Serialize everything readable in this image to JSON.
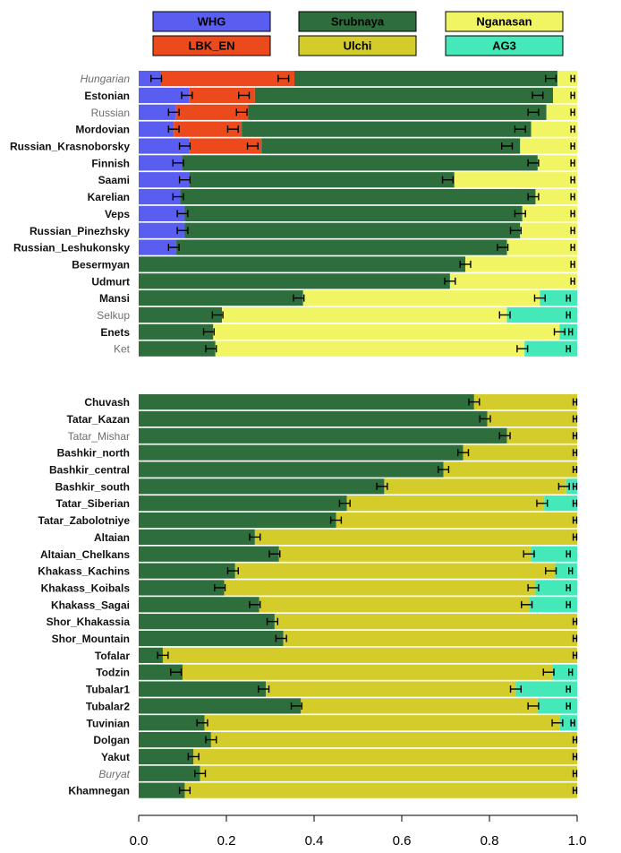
{
  "chart_data": {
    "type": "bar",
    "orientation": "horizontal",
    "stacked": true,
    "xlim": [
      0,
      1
    ],
    "x_ticks": [
      0.0,
      0.2,
      0.4,
      0.6,
      0.8,
      1.0
    ],
    "x_tick_labels": [
      "0.0",
      "0.2",
      "0.4",
      "0.6",
      "0.8",
      "1.0"
    ],
    "legend_position": "top",
    "components": [
      {
        "name": "WHG",
        "color": "#5a5ef0"
      },
      {
        "name": "LBK_EN",
        "color": "#ec4a1c"
      },
      {
        "name": "Srubnaya",
        "color": "#2d6e3c"
      },
      {
        "name": "Ulchi",
        "color": "#d4cc2a"
      },
      {
        "name": "Nganasan",
        "color": "#f1f564"
      },
      {
        "name": "AG3",
        "color": "#45e8b8"
      }
    ],
    "label_colors": {
      "normal": "#111111",
      "grey": "#6e6e6e"
    },
    "panels": [
      {
        "rows": [
          {
            "label": "Hungarian",
            "style": "grey-italic",
            "segments": [
              0.05,
              0.305,
              0.6,
              0,
              0.045,
              0
            ],
            "errorbars": [
              0.04,
              0.33,
              0.94,
              0.99
            ]
          },
          {
            "label": "Estonian",
            "style": "bold",
            "segments": [
              0.115,
              0.15,
              0.68,
              0,
              0.055,
              0
            ],
            "errorbars": [
              0.11,
              0.24,
              0.91,
              0.99
            ]
          },
          {
            "label": "Russian",
            "style": "grey",
            "segments": [
              0.085,
              0.165,
              0.68,
              0,
              0.07,
              0
            ],
            "errorbars": [
              0.08,
              0.235,
              0.9,
              0.99
            ]
          },
          {
            "label": "Mordovian",
            "style": "bold",
            "segments": [
              0.08,
              0.155,
              0.66,
              0,
              0.105,
              0
            ],
            "errorbars": [
              0.08,
              0.215,
              0.87,
              0.99
            ]
          },
          {
            "label": "Russian_Krasnoborsky",
            "style": "bold",
            "segments": [
              0.115,
              0.165,
              0.59,
              0,
              0.13,
              0
            ],
            "errorbars": [
              0.105,
              0.26,
              0.84,
              0.99
            ]
          },
          {
            "label": "Finnish",
            "style": "bold",
            "segments": [
              0.1,
              0,
              0.81,
              0,
              0.09,
              0
            ],
            "errorbars": [
              0.09,
              0.9,
              0.99
            ]
          },
          {
            "label": "Saami",
            "style": "bold",
            "segments": [
              0.115,
              0,
              0.605,
              0,
              0.28,
              0
            ],
            "errorbars": [
              0.105,
              0.705,
              0.99
            ]
          },
          {
            "label": "Karelian",
            "style": "bold",
            "segments": [
              0.095,
              0,
              0.81,
              0,
              0.095,
              0
            ],
            "errorbars": [
              0.09,
              0.9,
              0.99
            ]
          },
          {
            "label": "Veps",
            "style": "bold",
            "segments": [
              0.105,
              0,
              0.77,
              0,
              0.125,
              0
            ],
            "errorbars": [
              0.1,
              0.87,
              0.99
            ]
          },
          {
            "label": "Russian_Pinezhsky",
            "style": "bold",
            "segments": [
              0.105,
              0,
              0.765,
              0,
              0.13,
              0
            ],
            "errorbars": [
              0.1,
              0.86,
              0.99
            ]
          },
          {
            "label": "Russian_Leshukonsky",
            "style": "bold",
            "segments": [
              0.085,
              0,
              0.755,
              0,
              0.16,
              0
            ],
            "errorbars": [
              0.08,
              0.83,
              0.99
            ]
          },
          {
            "label": "Besermyan",
            "style": "bold",
            "segments": [
              0,
              0,
              0.745,
              0,
              0.255,
              0
            ],
            "errorbars": [
              0.745,
              0.99
            ]
          },
          {
            "label": "Udmurt",
            "style": "bold",
            "segments": [
              0,
              0,
              0.71,
              0,
              0.29,
              0
            ],
            "errorbars": [
              0.71,
              0.99
            ]
          },
          {
            "label": "Mansi",
            "style": "bold",
            "segments": [
              0,
              0,
              0.375,
              0,
              0.54,
              0.085
            ],
            "errorbars": [
              0.365,
              0.915,
              0.98
            ]
          },
          {
            "label": "Selkup",
            "style": "grey",
            "segments": [
              0,
              0,
              0.19,
              0,
              0.65,
              0.16
            ],
            "errorbars": [
              0.18,
              0.835,
              0.98
            ]
          },
          {
            "label": "Enets",
            "style": "bold",
            "segments": [
              0,
              0,
              0.17,
              0,
              0.79,
              0.04
            ],
            "errorbars": [
              0.16,
              0.96,
              0.985
            ]
          },
          {
            "label": "Ket",
            "style": "grey",
            "segments": [
              0,
              0,
              0.175,
              0,
              0.705,
              0.12
            ],
            "errorbars": [
              0.165,
              0.875,
              0.98
            ]
          }
        ]
      },
      {
        "rows": [
          {
            "label": "Chuvash",
            "style": "bold",
            "segments": [
              0,
              0,
              0.765,
              0.235,
              0,
              0
            ],
            "errorbars": [
              0.765,
              0.995
            ]
          },
          {
            "label": "Tatar_Kazan",
            "style": "bold",
            "segments": [
              0,
              0,
              0.795,
              0.205,
              0,
              0
            ],
            "errorbars": [
              0.79,
              0.995
            ]
          },
          {
            "label": "Tatar_Mishar",
            "style": "grey",
            "segments": [
              0,
              0,
              0.84,
              0.16,
              0,
              0
            ],
            "errorbars": [
              0.835,
              0.995
            ]
          },
          {
            "label": "Bashkir_north",
            "style": "bold",
            "segments": [
              0,
              0,
              0.74,
              0.26,
              0,
              0
            ],
            "errorbars": [
              0.74,
              0.995
            ]
          },
          {
            "label": "Bashkir_central",
            "style": "bold",
            "segments": [
              0,
              0,
              0.695,
              0.305,
              0,
              0
            ],
            "errorbars": [
              0.695,
              0.995
            ]
          },
          {
            "label": "Bashkir_south",
            "style": "bold",
            "segments": [
              0,
              0,
              0.56,
              0.415,
              0,
              0.025
            ],
            "errorbars": [
              0.555,
              0.97,
              0.995
            ]
          },
          {
            "label": "Tatar_Siberian",
            "style": "bold",
            "segments": [
              0,
              0,
              0.475,
              0.45,
              0,
              0.075
            ],
            "errorbars": [
              0.47,
              0.92,
              0.995
            ]
          },
          {
            "label": "Tatar_Zabolotniye",
            "style": "bold",
            "segments": [
              0,
              0,
              0.45,
              0.55,
              0,
              0
            ],
            "errorbars": [
              0.45,
              0.995
            ]
          },
          {
            "label": "Altaian",
            "style": "bold",
            "segments": [
              0,
              0,
              0.265,
              0.735,
              0,
              0
            ],
            "errorbars": [
              0.265,
              0.995
            ]
          },
          {
            "label": "Altaian_Chelkans",
            "style": "bold",
            "segments": [
              0,
              0,
              0.32,
              0.575,
              0,
              0.105
            ],
            "errorbars": [
              0.31,
              0.89,
              0.98
            ]
          },
          {
            "label": "Khakass_Kachins",
            "style": "bold",
            "segments": [
              0,
              0,
              0.22,
              0.73,
              0,
              0.05
            ],
            "errorbars": [
              0.215,
              0.94,
              0.985
            ]
          },
          {
            "label": "Khakass_Koibals",
            "style": "bold",
            "segments": [
              0,
              0,
              0.195,
              0.71,
              0,
              0.095
            ],
            "errorbars": [
              0.185,
              0.9,
              0.98
            ]
          },
          {
            "label": "Khakass_Sagai",
            "style": "bold",
            "segments": [
              0,
              0,
              0.275,
              0.615,
              0,
              0.11
            ],
            "errorbars": [
              0.265,
              0.885,
              0.98
            ]
          },
          {
            "label": "Shor_Khakassia",
            "style": "bold",
            "segments": [
              0,
              0,
              0.31,
              0.69,
              0,
              0
            ],
            "errorbars": [
              0.305,
              0.995
            ]
          },
          {
            "label": "Shor_Mountain",
            "style": "bold",
            "segments": [
              0,
              0,
              0.33,
              0.67,
              0,
              0
            ],
            "errorbars": [
              0.325,
              0.995
            ]
          },
          {
            "label": "Tofalar",
            "style": "bold",
            "segments": [
              0,
              0,
              0.055,
              0.945,
              0,
              0
            ],
            "errorbars": [
              0.055,
              0.995
            ]
          },
          {
            "label": "Todzin",
            "style": "bold",
            "segments": [
              0,
              0,
              0.1,
              0.845,
              0,
              0.055
            ],
            "errorbars": [
              0.085,
              0.935,
              0.985
            ]
          },
          {
            "label": "Tubalar1",
            "style": "bold",
            "segments": [
              0,
              0,
              0.29,
              0.57,
              0,
              0.14
            ],
            "errorbars": [
              0.285,
              0.86,
              0.98
            ]
          },
          {
            "label": "Tubalar2",
            "style": "bold",
            "segments": [
              0,
              0,
              0.37,
              0.54,
              0,
              0.09
            ],
            "errorbars": [
              0.36,
              0.9,
              0.98
            ]
          },
          {
            "label": "Tuvinian",
            "style": "bold",
            "segments": [
              0,
              0,
              0.15,
              0.81,
              0,
              0.04
            ],
            "errorbars": [
              0.145,
              0.955,
              0.99
            ]
          },
          {
            "label": "Dolgan",
            "style": "bold",
            "segments": [
              0,
              0,
              0.165,
              0.835,
              0,
              0
            ],
            "errorbars": [
              0.165,
              0.995
            ]
          },
          {
            "label": "Yakut",
            "style": "bold",
            "segments": [
              0,
              0,
              0.125,
              0.875,
              0,
              0
            ],
            "errorbars": [
              0.125,
              0.995
            ]
          },
          {
            "label": "Buryat",
            "style": "grey-italic",
            "segments": [
              0,
              0,
              0.14,
              0.86,
              0,
              0
            ],
            "errorbars": [
              0.14,
              0.995
            ]
          },
          {
            "label": "Khamnegan",
            "style": "bold",
            "segments": [
              0,
              0,
              0.105,
              0.895,
              0,
              0
            ],
            "errorbars": [
              0.105,
              0.995
            ]
          }
        ]
      }
    ]
  }
}
